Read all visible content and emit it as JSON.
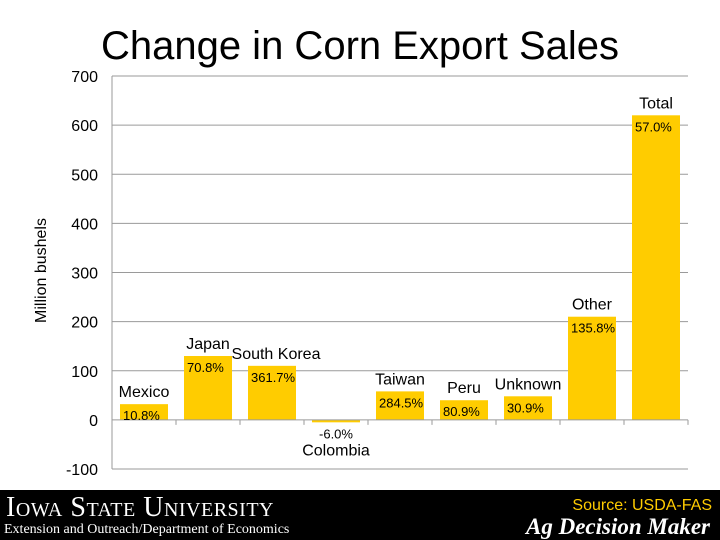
{
  "chart_data": {
    "type": "bar",
    "title": "Change in Corn Export Sales",
    "ylabel": "Million bushels",
    "ylim": [
      -100,
      700
    ],
    "yticks": [
      -100,
      0,
      100,
      200,
      300,
      400,
      500,
      600,
      700
    ],
    "grid": true,
    "bar_color": "#ffcc00",
    "categories": [
      "Mexico",
      "Japan",
      "South Korea",
      "Colombia",
      "Taiwan",
      "Peru",
      "Unknown",
      "Other",
      "Total"
    ],
    "values": [
      32,
      130,
      110,
      -5,
      58,
      40,
      48,
      210,
      620
    ],
    "data_labels": [
      "10.8%",
      "70.8%",
      "361.7%",
      "-6.0%",
      "284.5%",
      "80.9%",
      "30.9%",
      "135.8%",
      "57.0%"
    ]
  },
  "footer": {
    "university": "Iowa State University",
    "department": "Extension and Outreach/Department of Economics",
    "source": "Source: USDA-FAS",
    "brand": "Ag Decision Maker"
  }
}
